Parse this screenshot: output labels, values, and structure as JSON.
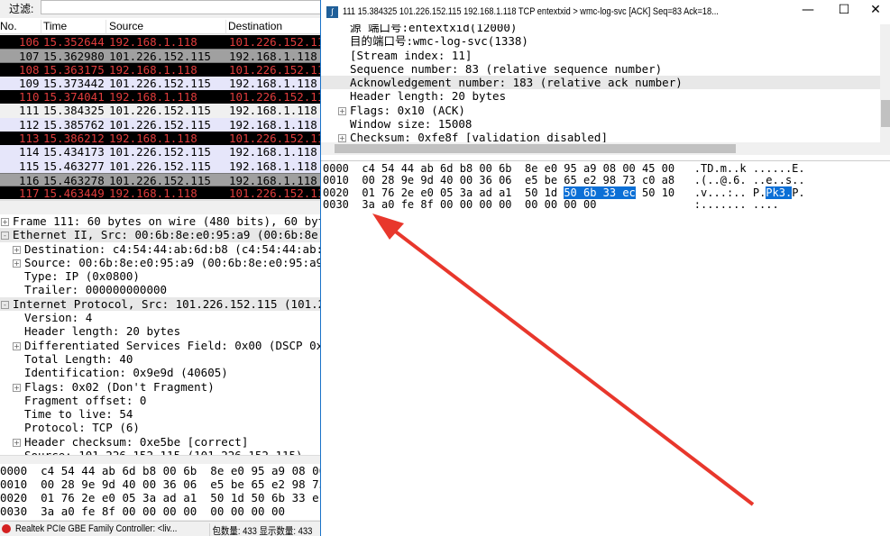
{
  "filter": {
    "label": "过滤:",
    "value": ""
  },
  "columns": [
    "No.",
    "Time",
    "Source",
    "Destination"
  ],
  "packets": [
    {
      "no": "106",
      "time": "15.352644",
      "src": "192.168.1.118",
      "dst": "101.226.152.115",
      "style": "black"
    },
    {
      "no": "107",
      "time": "15.362980",
      "src": "101.226.152.115",
      "dst": "192.168.1.118",
      "style": "gray"
    },
    {
      "no": "108",
      "time": "15.363175",
      "src": "192.168.1.118",
      "dst": "101.226.152.115",
      "style": "black"
    },
    {
      "no": "109",
      "time": "15.373442",
      "src": "101.226.152.115",
      "dst": "192.168.1.118",
      "style": "lav"
    },
    {
      "no": "110",
      "time": "15.374041",
      "src": "192.168.1.118",
      "dst": "101.226.152.115",
      "style": "black"
    },
    {
      "no": "111",
      "time": "15.384325",
      "src": "101.226.152.115",
      "dst": "192.168.1.118",
      "style": "sel"
    },
    {
      "no": "112",
      "time": "15.385762",
      "src": "101.226.152.115",
      "dst": "192.168.1.118",
      "style": "lav"
    },
    {
      "no": "113",
      "time": "15.386212",
      "src": "192.168.1.118",
      "dst": "101.226.152.115",
      "style": "black"
    },
    {
      "no": "114",
      "time": "15.434173",
      "src": "101.226.152.115",
      "dst": "192.168.1.118",
      "style": "lav"
    },
    {
      "no": "115",
      "time": "15.463277",
      "src": "101.226.152.115",
      "dst": "192.168.1.118",
      "style": "lav"
    },
    {
      "no": "116",
      "time": "15.463278",
      "src": "101.226.152.115",
      "dst": "192.168.1.118",
      "style": "gray"
    },
    {
      "no": "117",
      "time": "15.463449",
      "src": "192.168.1.118",
      "dst": "101.226.152.115",
      "style": "black"
    }
  ],
  "details": [
    {
      "t": "Frame 111: 60 bytes on wire (480 bits), 60 bytes c",
      "ind": 0,
      "exp": "+"
    },
    {
      "t": "Ethernet II, Src: 00:6b:8e:e0:95:a9 (00:6b:8e:e0:9",
      "ind": 0,
      "exp": "-",
      "hl": true
    },
    {
      "t": "Destination: c4:54:44:ab:6d:b8 (c4:54:44:ab:6d:b",
      "ind": 1,
      "exp": "+"
    },
    {
      "t": "Source: 00:6b:8e:e0:95:a9 (00:6b:8e:e0:95:a9)",
      "ind": 1,
      "exp": "+"
    },
    {
      "t": "Type: IP (0x0800)",
      "ind": 2
    },
    {
      "t": "Trailer: 000000000000",
      "ind": 2
    },
    {
      "t": "Internet Protocol, Src: 101.226.152.115 (101.226.1",
      "ind": 0,
      "exp": "-",
      "hl": true
    },
    {
      "t": "Version: 4",
      "ind": 2
    },
    {
      "t": "Header length: 20 bytes",
      "ind": 2
    },
    {
      "t": "Differentiated Services Field: 0x00 (DSCP 0x00:",
      "ind": 1,
      "exp": "+"
    },
    {
      "t": "Total Length: 40",
      "ind": 2
    },
    {
      "t": "Identification: 0x9e9d (40605)",
      "ind": 2
    },
    {
      "t": "Flags: 0x02 (Don't Fragment)",
      "ind": 1,
      "exp": "+"
    },
    {
      "t": "Fragment offset: 0",
      "ind": 2
    },
    {
      "t": "Time to live: 54",
      "ind": 2
    },
    {
      "t": "Protocol: TCP (6)",
      "ind": 2
    },
    {
      "t": "Header checksum: 0xe5be [correct]",
      "ind": 1,
      "exp": "+"
    },
    {
      "t": "Source: 101.226.152.115 (101.226.152.115)",
      "ind": 2
    }
  ],
  "hex_main": [
    "0000  c4 54 44 ab 6d b8 00 6b  8e e0 95 a9 08 00 45 00",
    "0010  00 28 9e 9d 40 00 36 06  e5 be 65 e2 98 73 c0 a8",
    "0020  01 76 2e e0 05 3a ad a1  50 1d 50 6b 33 ec 50 10",
    "0030  3a a0 fe 8f 00 00 00 00  00 00 00 00"
  ],
  "status": {
    "interface": "Realtek PCIe GBE Family Controller: <liv...",
    "packets": "包数量: 433 显示数量: 433"
  },
  "window": {
    "title": "111 15.384325 101.226.152.115 192.168.1.118 TCP entextxid > wmc-log-svc [ACK] Seq=83 Ack=18...",
    "minimize": "—",
    "maximize": "☐",
    "close": "✕"
  },
  "tree": [
    {
      "t": "源  端口号:entextxid(12000)",
      "ind": 2
    },
    {
      "t": "目的端口号:wmc-log-svc(1338)",
      "ind": 2
    },
    {
      "t": "[Stream index: 11]",
      "ind": 2
    },
    {
      "t": "Sequence number: 83    (relative sequence number)",
      "ind": 2
    },
    {
      "t": "Acknowledgement number: 183    (relative ack number)",
      "ind": 2,
      "hl": true
    },
    {
      "t": "Header length: 20 bytes",
      "ind": 2
    },
    {
      "t": "Flags: 0x10 (ACK)",
      "ind": 1,
      "exp": "+"
    },
    {
      "t": "Window size: 15008",
      "ind": 2
    },
    {
      "t": "Checksum: 0xfe8f [validation disabled]",
      "ind": 1,
      "exp": "+"
    }
  ],
  "hex_detail": [
    {
      "pre": "0000  c4 54 44 ab 6d b8 00 6b  8e e0 95 a9 08 00 45 00   .TD.m..k ......E.",
      "sel": "",
      "post": "",
      "sel2": "",
      "post2": ""
    },
    {
      "pre": "0010  00 28 9e 9d 40 00 36 06  e5 be 65 e2 98 73 c0 a8   .(..@.6. ..e..s..",
      "sel": "",
      "post": "",
      "sel2": "",
      "post2": ""
    },
    {
      "pre": "0020  01 76 2e e0 05 3a ad a1  50 1d ",
      "sel": "50 6b 33 ec",
      "post": " 50 10   .v...:.. P.",
      "sel2": "Pk3.",
      "post2": "P."
    },
    {
      "pre": "0030  3a a0 fe 8f 00 00 00 00  00 00 00 00               :....... ....",
      "sel": "",
      "post": "",
      "sel2": "",
      "post2": ""
    }
  ],
  "colors": {
    "black_bg": "#000000",
    "black_fg": "#e03c3c",
    "gray_bg": "#a0a0a0",
    "lav_bg": "#e6e6fa",
    "sel_bg": "#f0f0f0",
    "highlight": "#0b6fd6",
    "arrow": "#e8372c"
  }
}
